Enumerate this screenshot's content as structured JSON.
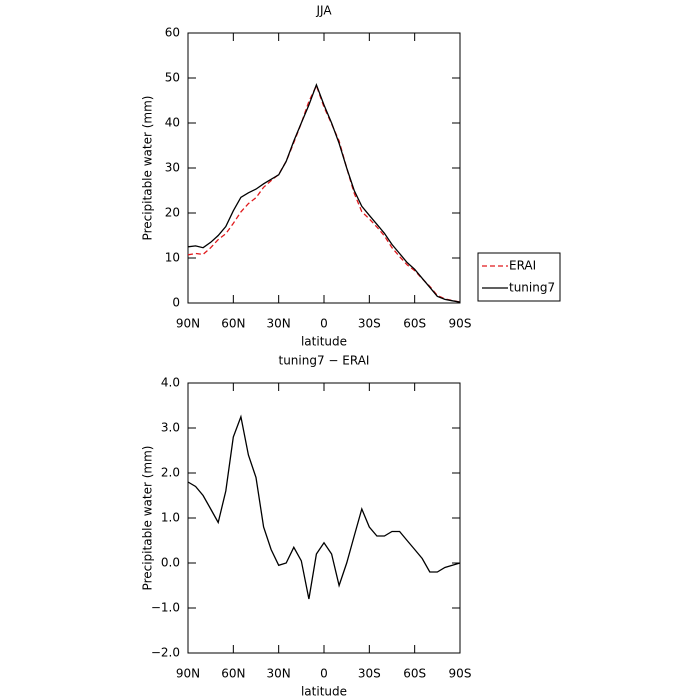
{
  "chart_data": [
    {
      "type": "line",
      "title": "JJA",
      "x_label": "latitude",
      "y_label": "Precipitable water (mm)",
      "x": [
        90,
        85,
        80,
        75,
        70,
        65,
        60,
        55,
        50,
        45,
        40,
        35,
        30,
        25,
        20,
        15,
        10,
        5,
        0,
        -5,
        -10,
        -15,
        -20,
        -25,
        -30,
        -35,
        -40,
        -45,
        -50,
        -55,
        -60,
        -65,
        -70,
        -75,
        -80,
        -85,
        -90
      ],
      "series": [
        {
          "name": "ERAI",
          "color": "#e0191c",
          "style": "dashed",
          "values": [
            10.7,
            11.0,
            10.8,
            12.3,
            14.1,
            15.4,
            17.7,
            20.25,
            22.1,
            23.4,
            25.7,
            27.2,
            28.55,
            31.5,
            35.65,
            39.95,
            44.8,
            48.3,
            43.55,
            39.8,
            36.0,
            30.0,
            24.4,
            20.3,
            18.7,
            16.9,
            14.9,
            12.3,
            10.3,
            8.5,
            7.2,
            5.4,
            3.7,
            1.7,
            0.9,
            0.55,
            0.2
          ]
        },
        {
          "name": "tuning7",
          "color": "#000000",
          "style": "solid",
          "values": [
            12.5,
            12.7,
            12.3,
            13.5,
            15.0,
            17.0,
            20.5,
            23.5,
            24.5,
            25.3,
            26.5,
            27.5,
            28.5,
            31.5,
            36.0,
            40.0,
            44.0,
            48.5,
            44.0,
            40.0,
            35.5,
            30.0,
            25.0,
            21.5,
            19.5,
            17.5,
            15.5,
            13.0,
            11.0,
            9.0,
            7.5,
            5.5,
            3.5,
            1.5,
            0.8,
            0.5,
            0.2
          ]
        }
      ],
      "xlim": [
        90,
        -90
      ],
      "xticks": [
        {
          "value": 90,
          "label": "90N"
        },
        {
          "value": 60,
          "label": "60N"
        },
        {
          "value": 30,
          "label": "30N"
        },
        0,
        {
          "value": -30,
          "label": "30S"
        },
        {
          "value": -60,
          "label": "60S"
        },
        {
          "value": -90,
          "label": "90S"
        }
      ],
      "ylim": [
        0,
        60
      ],
      "yticks": [
        0,
        10,
        20,
        30,
        40,
        50,
        60
      ],
      "legend": "right"
    },
    {
      "type": "line",
      "title": "tuning7 − ERAI",
      "x_label": "latitude",
      "y_label": "Precipitable water (mm)",
      "x": [
        90,
        85,
        80,
        75,
        70,
        65,
        60,
        55,
        50,
        45,
        40,
        35,
        30,
        25,
        20,
        15,
        10,
        5,
        0,
        -5,
        -10,
        -15,
        -20,
        -25,
        -30,
        -35,
        -40,
        -45,
        -50,
        -55,
        -60,
        -65,
        -70,
        -75,
        -80,
        -85,
        -90
      ],
      "color": "#000000",
      "values": [
        1.8,
        1.7,
        1.5,
        1.2,
        0.9,
        1.6,
        2.8,
        3.25,
        2.4,
        1.9,
        0.8,
        0.3,
        -0.05,
        0.0,
        0.35,
        0.05,
        -0.8,
        0.2,
        0.45,
        0.2,
        -0.5,
        0.0,
        0.6,
        1.2,
        0.8,
        0.6,
        0.6,
        0.7,
        0.7,
        0.5,
        0.3,
        0.1,
        -0.2,
        -0.2,
        -0.1,
        -0.05,
        0
      ],
      "xlim": [
        90,
        -90
      ],
      "xticks": [
        {
          "value": 90,
          "label": "90N"
        },
        {
          "value": 60,
          "label": "60N"
        },
        {
          "value": 30,
          "label": "30N"
        },
        0,
        {
          "value": -30,
          "label": "30S"
        },
        {
          "value": -60,
          "label": "60S"
        },
        {
          "value": -90,
          "label": "90S"
        }
      ],
      "ylim": [
        -2,
        4
      ],
      "yticks": [
        {
          "value": -2,
          "label": "−2.0"
        },
        {
          "value": -1,
          "label": "−1.0"
        },
        {
          "value": 0,
          "label": "0.0"
        },
        {
          "value": 1,
          "label": "1.0"
        },
        {
          "value": 2,
          "label": "2.0"
        },
        {
          "value": 3,
          "label": "3.0"
        },
        {
          "value": 4,
          "label": "4.0"
        }
      ]
    }
  ]
}
